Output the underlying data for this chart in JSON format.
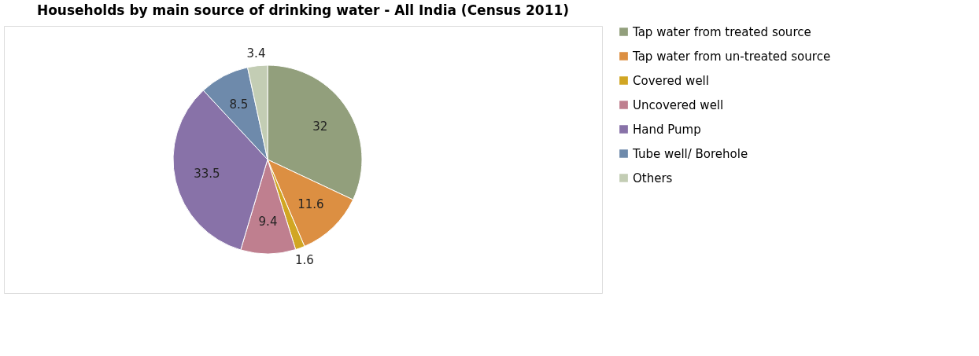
{
  "chart_data": {
    "type": "pie",
    "title": "Households by main source of drinking water - All India (Census 2011)",
    "categories": [
      "Tap water from treated source",
      "Tap water from un-treated source",
      "Covered well",
      "Uncovered well",
      "Hand Pump",
      "Tube well/ Borehole",
      "Others"
    ],
    "values": [
      32,
      11.6,
      1.6,
      9.4,
      33.5,
      8.5,
      3.4
    ],
    "colors": [
      "#929f7c",
      "#dc8f42",
      "#d1a623",
      "#bf7f8f",
      "#8872a8",
      "#6e8aab",
      "#c3cdb4"
    ],
    "data_labels": true,
    "legend": "right"
  }
}
